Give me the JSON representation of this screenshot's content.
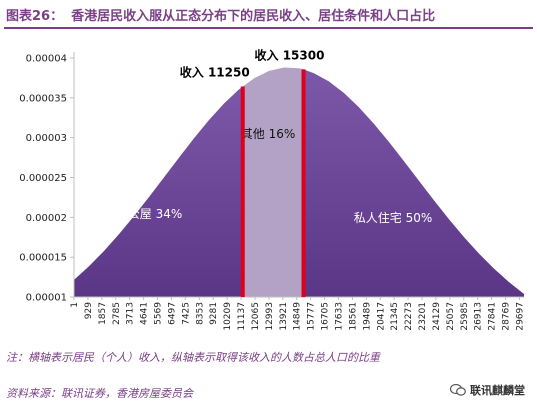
{
  "title": {
    "figure": "图表26：",
    "text": "香港居民收入服从正态分布下的居民收入、居住条件和人口占比"
  },
  "note": "注：横轴表示居民（个人）收入，纵轴表示取得该收入的人数占总人口的比重",
  "source": "资料来源：联讯证券，香港房屋委员会",
  "brand": "联讯麒麟堂",
  "colors": {
    "accent": "#7a3f87",
    "region_dark": "#5b3586",
    "region_light": "#b3a2c6",
    "marker": "#e0001b"
  },
  "chart_data": {
    "type": "area",
    "distribution": "normal",
    "x_ticks": [
      "1",
      "929",
      "1857",
      "2785",
      "3713",
      "4641",
      "5569",
      "6497",
      "7425",
      "8353",
      "9281",
      "10209",
      "11137",
      "12065",
      "12993",
      "13921",
      "14849",
      "15777",
      "16705",
      "17633",
      "18561",
      "19489",
      "20417",
      "21345",
      "22273",
      "23201",
      "24129",
      "25057",
      "25985",
      "26913",
      "27841",
      "28769",
      "29697"
    ],
    "xlim": [
      0,
      30000
    ],
    "y_ticks": [
      "0.00001",
      "0.000015",
      "0.00002",
      "0.000025",
      "0.00003",
      "0.000035",
      "0.00004"
    ],
    "ylim": [
      1e-05,
      4e-05
    ],
    "grid": false,
    "series": [
      {
        "x": [
          0,
          1000,
          2000,
          3000,
          4000,
          5000,
          6000,
          7000,
          8000,
          9000,
          10000,
          11000,
          11250,
          12000,
          13000,
          14000,
          15000,
          15300,
          16000,
          17000,
          18000,
          19000,
          20000,
          21000,
          22000,
          23000,
          24000,
          25000,
          26000,
          27000,
          28000,
          29000,
          30000
        ],
        "y": [
          1.215e-05,
          1.386e-05,
          1.578e-05,
          1.789e-05,
          2.016e-05,
          2.255e-05,
          2.502e-05,
          2.75e-05,
          2.993e-05,
          3.222e-05,
          3.429e-05,
          3.606e-05,
          3.643e-05,
          3.744e-05,
          3.838e-05,
          3.881e-05,
          3.871e-05,
          3.858e-05,
          3.808e-05,
          3.705e-05,
          3.561e-05,
          3.381e-05,
          3.173e-05,
          2.945e-05,
          2.704e-05,
          2.457e-05,
          2.213e-05,
          1.976e-05,
          1.752e-05,
          1.545e-05,
          1.356e-05,
          1.187e-05,
          1.038e-05
        ]
      }
    ],
    "regions": [
      {
        "label": "公屋 34%",
        "from": 0,
        "to": 11250
      },
      {
        "label": "其他 16%",
        "from": 11250,
        "to": 15300
      },
      {
        "label": "私人住宅 50%",
        "from": 15300,
        "to": 30000
      }
    ],
    "markers": [
      {
        "label": "收入 11250",
        "x": 11250
      },
      {
        "label": "收入 15300",
        "x": 15300
      }
    ]
  }
}
